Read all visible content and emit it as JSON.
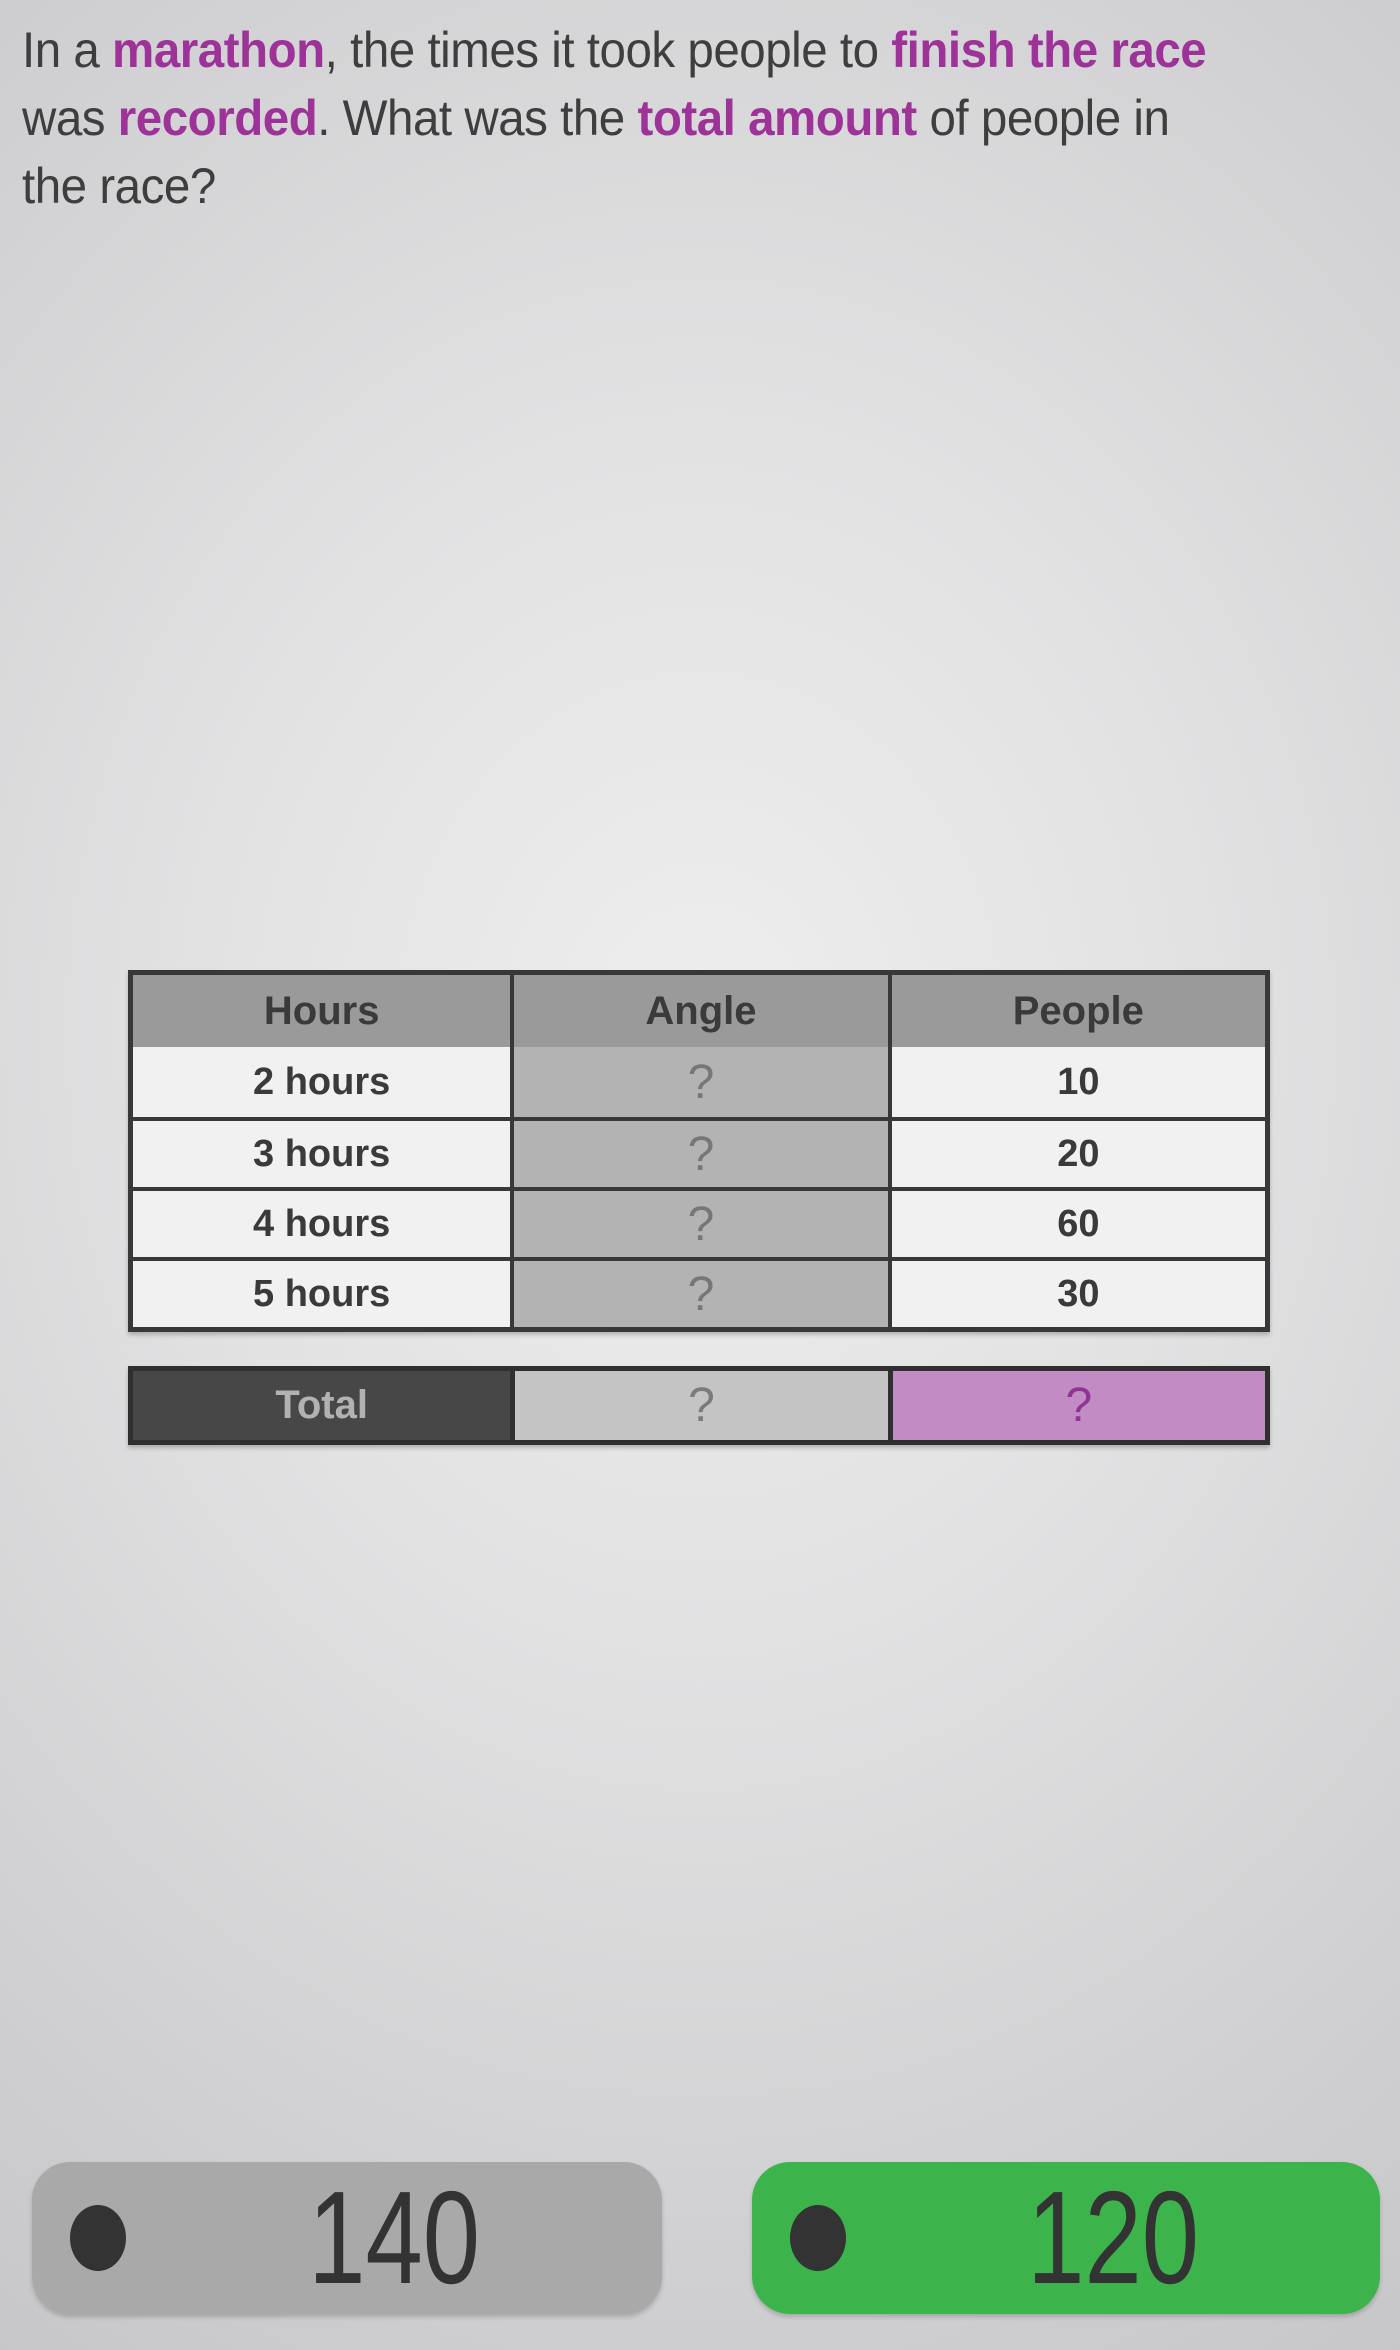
{
  "colors": {
    "accent_purple": "#9d3399",
    "question_text": "#3e3e3e",
    "table_border": "#383838",
    "header_bg": "#9a9a9a",
    "light_cell_bg": "#f1f1f1",
    "angle_cell_bg": "#b3b3b3",
    "total_label_bg": "#474747",
    "total_angle_bg": "#c4c4c4",
    "total_people_bg": "#c18cc3",
    "total_people_text": "#8f3397",
    "answer_gray_bg": "#a9a9a9",
    "answer_green_bg": "#3cb44b"
  },
  "question": {
    "lines": [
      [
        {
          "t": "In a ",
          "h": false
        },
        {
          "t": "marathon",
          "h": true
        },
        {
          "t": ", the times it took people to ",
          "h": false
        },
        {
          "t": "finish the race",
          "h": true
        }
      ],
      [
        {
          "t": "was ",
          "h": false
        },
        {
          "t": "recorded",
          "h": true
        },
        {
          "t": ". What was the ",
          "h": false
        },
        {
          "t": "total amount",
          "h": true
        },
        {
          "t": " of people in",
          "h": false
        }
      ],
      [
        {
          "t": "the race?",
          "h": false
        }
      ]
    ]
  },
  "table": {
    "headers": [
      "Hours",
      "Angle",
      "People"
    ],
    "rows": [
      {
        "hours": "2 hours",
        "angle": "?",
        "people": "10"
      },
      {
        "hours": "3 hours",
        "angle": "?",
        "people": "20"
      },
      {
        "hours": "4 hours",
        "angle": "?",
        "people": "60"
      },
      {
        "hours": "5 hours",
        "angle": "?",
        "people": "30"
      }
    ],
    "total": {
      "label": "Total",
      "angle": "?",
      "people": "?"
    }
  },
  "answers": [
    {
      "label": "140",
      "style": "gray"
    },
    {
      "label": "120",
      "style": "green"
    }
  ]
}
